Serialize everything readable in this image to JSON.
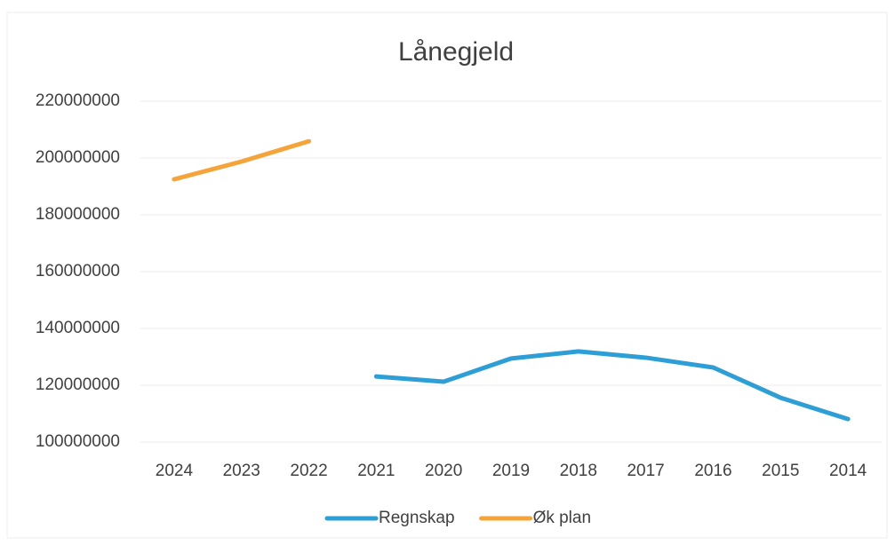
{
  "chart_data": {
    "type": "line",
    "title": "Lånegjeld",
    "categories": [
      "2024",
      "2023",
      "2022",
      "2021",
      "2020",
      "2019",
      "2018",
      "2017",
      "2016",
      "2015",
      "2014"
    ],
    "series": [
      {
        "name": "Regnskap",
        "color": "#2e9fd6",
        "values": [
          null,
          null,
          null,
          123100000,
          121250000,
          129400000,
          131900000,
          129700000,
          126250000,
          115600000,
          108100000
        ]
      },
      {
        "name": "Øk plan",
        "color": "#f5a43a",
        "values": [
          192500000,
          198750000,
          205900000,
          null,
          null,
          null,
          null,
          null,
          null,
          null,
          null
        ]
      }
    ],
    "ylim": [
      100000000,
      220000000
    ],
    "yticks": [
      100000000,
      120000000,
      140000000,
      160000000,
      180000000,
      200000000,
      220000000
    ],
    "grid": true,
    "legend": "bottom"
  }
}
